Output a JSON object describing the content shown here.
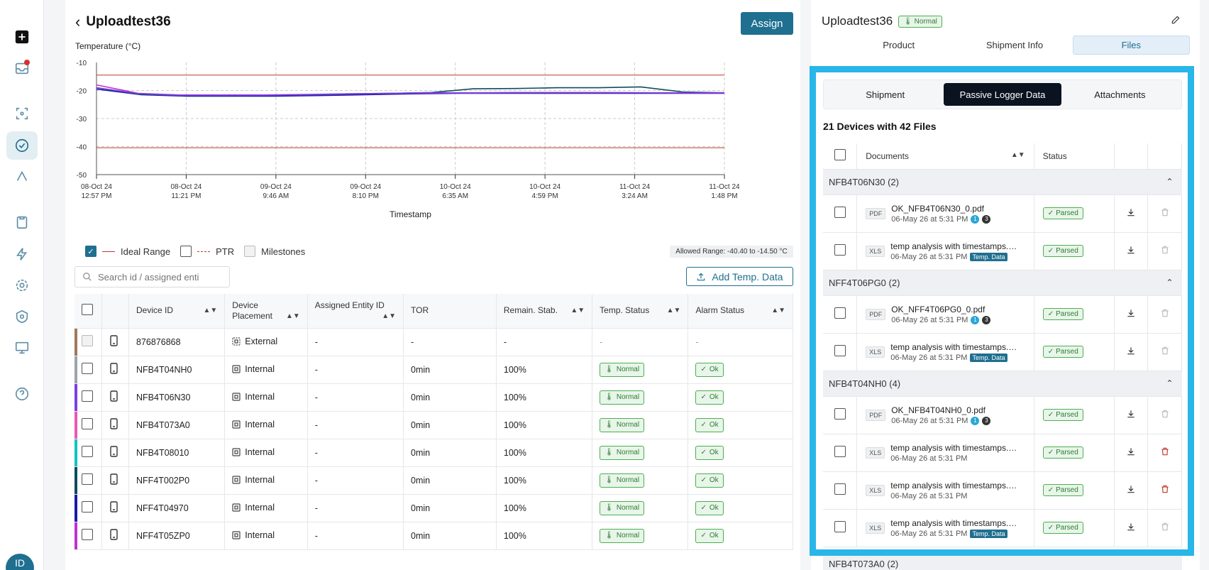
{
  "nav": {
    "items": [
      "add",
      "inbox",
      "scan",
      "shipments",
      "analytics",
      "clipboard",
      "power",
      "settings",
      "security",
      "devices",
      "help"
    ],
    "avatar_initials": "ID"
  },
  "main": {
    "title": "Uploadtest36",
    "assign_label": "Assign",
    "chart": {
      "ylabel": "Temperature (°C)",
      "xlabel": "Timestamp"
    },
    "legend": {
      "ideal_range": "Ideal Range",
      "ptr": "PTR",
      "milestones": "Milestones",
      "allowed_range": "Allowed Range: -40.40 to -14.50 °C"
    },
    "search_placeholder": "Search id / assigned enti",
    "add_temp_label": "Add Temp. Data",
    "table": {
      "headers": [
        "Device ID",
        "Device Placement",
        "Assigned Entity ID",
        "TOR",
        "Remain. Stab.",
        "Temp. Status",
        "Alarm Status"
      ],
      "rows": [
        {
          "id": "876876868",
          "placement": "External",
          "entity": "-",
          "tor": "-",
          "stab": "-",
          "temp": "-",
          "alarm": "-",
          "color": "#a0785a"
        },
        {
          "id": "NFB4T04NH0",
          "placement": "Internal",
          "entity": "-",
          "tor": "0min",
          "stab": "100%",
          "temp": "Normal",
          "alarm": "Ok",
          "color": "#9aa4ad"
        },
        {
          "id": "NFB4T06N30",
          "placement": "Internal",
          "entity": "-",
          "tor": "0min",
          "stab": "100%",
          "temp": "Normal",
          "alarm": "Ok",
          "color": "#7b3fe4"
        },
        {
          "id": "NFB4T073A0",
          "placement": "Internal",
          "entity": "-",
          "tor": "0min",
          "stab": "100%",
          "temp": "Normal",
          "alarm": "Ok",
          "color": "#e85ab5"
        },
        {
          "id": "NFB4T08010",
          "placement": "Internal",
          "entity": "-",
          "tor": "0min",
          "stab": "100%",
          "temp": "Normal",
          "alarm": "Ok",
          "color": "#12c2c2"
        },
        {
          "id": "NFF4T002P0",
          "placement": "Internal",
          "entity": "-",
          "tor": "0min",
          "stab": "100%",
          "temp": "Normal",
          "alarm": "Ok",
          "color": "#0f4c5c"
        },
        {
          "id": "NFF4T04970",
          "placement": "Internal",
          "entity": "-",
          "tor": "0min",
          "stab": "100%",
          "temp": "Normal",
          "alarm": "Ok",
          "color": "#1a1aa8"
        },
        {
          "id": "NFF4T05ZP0",
          "placement": "Internal",
          "entity": "-",
          "tor": "0min",
          "stab": "100%",
          "temp": "Normal",
          "alarm": "Ok",
          "color": "#c22fd1"
        }
      ]
    }
  },
  "chart_data": {
    "type": "line",
    "ylabel": "Temperature (°C)",
    "xlabel": "Timestamp",
    "ylim": [
      -50,
      -10
    ],
    "yticks": [
      -10,
      -20,
      -30,
      -40,
      -50
    ],
    "x_ticks": [
      [
        "08-Oct 24",
        "12:57 PM"
      ],
      [
        "08-Oct 24",
        "11:21 PM"
      ],
      [
        "09-Oct 24",
        "9:46 AM"
      ],
      [
        "09-Oct 24",
        "8:10 PM"
      ],
      [
        "10-Oct 24",
        "6:35 AM"
      ],
      [
        "10-Oct 24",
        "4:59 PM"
      ],
      [
        "11-Oct 24",
        "3:24 AM"
      ],
      [
        "11-Oct 24",
        "1:48 PM"
      ]
    ],
    "grid": true,
    "reference_lines": [
      -14.5,
      -40.4
    ],
    "series": [
      {
        "color": "#1a1aa8",
        "values": [
          -19.5,
          -21.5,
          -22.0,
          -22.0,
          -22.0,
          -21.8,
          -21.5,
          -21.2,
          -21.0,
          -21.0,
          -21.0,
          -21.0,
          -21.0,
          -21.0,
          -21.0
        ]
      },
      {
        "color": "#0f4c5c",
        "values": [
          -19.0,
          -21.3,
          -21.8,
          -21.8,
          -21.7,
          -21.6,
          -21.3,
          -21.0,
          -20.7,
          -19.4,
          -19.3,
          -19.0,
          -19.0,
          -18.7,
          -20.5,
          -20.8
        ]
      },
      {
        "color": "#c22fd1",
        "values": [
          -18.0,
          -21.0,
          -21.6,
          -21.6,
          -21.6,
          -21.4,
          -21.2,
          -21.0,
          -20.8,
          -20.8,
          -20.7,
          -20.7,
          -20.7,
          -20.8,
          -20.8,
          -20.8
        ]
      },
      {
        "color": "#7b3fe4",
        "values": [
          -19.0,
          -21.1,
          -21.7,
          -21.7,
          -21.7,
          -21.5,
          -21.2,
          -21.0,
          -20.9,
          -20.9,
          -20.8,
          -20.8,
          -20.8,
          -20.8,
          -20.9,
          -20.9
        ]
      }
    ]
  },
  "right": {
    "name": "Uploadtest36",
    "status": "Normal",
    "tabs": [
      "Product",
      "Shipment Info",
      "Files"
    ],
    "sub_tabs": [
      "Shipment",
      "Passive Logger Data",
      "Attachments"
    ],
    "device_count": "21 Devices with 42 Files",
    "headers": [
      "Documents",
      "Status"
    ],
    "groups": [
      {
        "label": "NFB4T06N30 (2)",
        "files": [
          {
            "type": "PDF",
            "name": "OK_NFB4T06N30_0.pdf",
            "meta": "06-May 26 at 5:31 PM",
            "badges": [
              "1",
              "3"
            ],
            "temp": "",
            "status": "Parsed",
            "delete_red": false
          },
          {
            "type": "XLS",
            "name": "temp analysis with timestamps.csv",
            "meta": "06-May 26 at 5:31 PM",
            "badges": [],
            "temp": "Temp. Data",
            "status": "Parsed",
            "delete_red": false
          }
        ]
      },
      {
        "label": "NFF4T06PG0 (2)",
        "files": [
          {
            "type": "PDF",
            "name": "OK_NFF4T06PG0_0.pdf",
            "meta": "06-May 26 at 5:31 PM",
            "badges": [
              "1",
              "3"
            ],
            "temp": "",
            "status": "Parsed",
            "delete_red": false
          },
          {
            "type": "XLS",
            "name": "temp analysis with timestamps.csv",
            "meta": "06-May 26 at 5:31 PM",
            "badges": [],
            "temp": "Temp. Data",
            "status": "Parsed",
            "delete_red": false
          }
        ]
      },
      {
        "label": "NFB4T04NH0 (4)",
        "files": [
          {
            "type": "PDF",
            "name": "OK_NFB4T04NH0_0.pdf",
            "meta": "06-May 26 at 5:31 PM",
            "badges": [
              "1",
              "3"
            ],
            "temp": "",
            "status": "Parsed",
            "delete_red": false
          },
          {
            "type": "XLS",
            "name": "temp analysis with timestamps.csv",
            "meta": "06-May 26 at 5:31 PM",
            "badges": [],
            "temp": "",
            "status": "Parsed",
            "delete_red": true
          },
          {
            "type": "XLS",
            "name": "temp analysis with timestamps.csv",
            "meta": "06-May 26 at 5:31 PM",
            "badges": [],
            "temp": "",
            "status": "Parsed",
            "delete_red": true
          },
          {
            "type": "XLS",
            "name": "temp analysis with timestamps.csv",
            "meta": "06-May 26 at 5:31 PM",
            "badges": [],
            "temp": "Temp. Data",
            "status": "Parsed",
            "delete_red": false
          }
        ]
      }
    ],
    "next_group": "NFB4T073A0 (2)"
  }
}
